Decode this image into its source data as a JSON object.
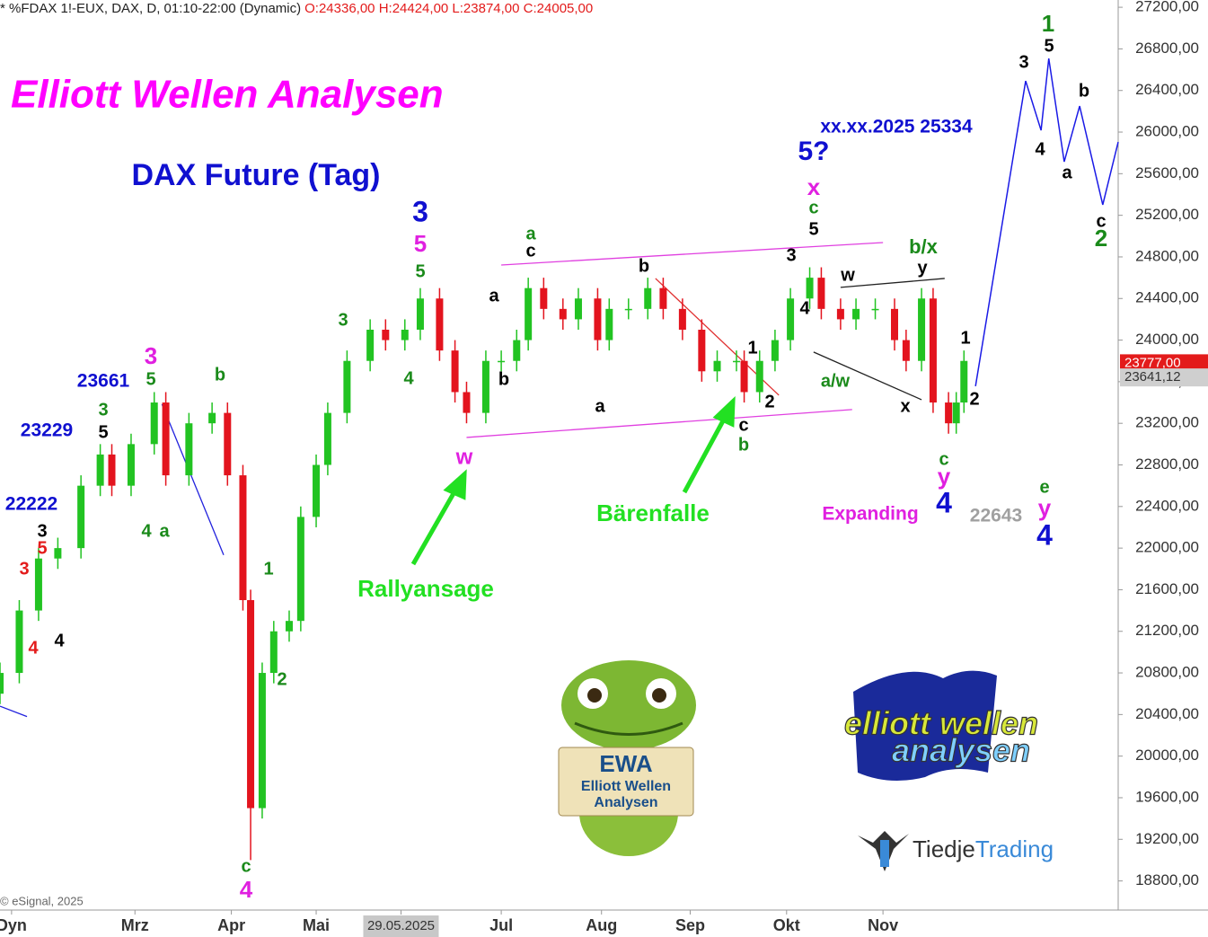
{
  "chart_data": {
    "type": "candlestick",
    "header": {
      "symbol": "* %FDAX 1!-EUX, DAX, D, 01:10-22:00 (Dynamic)",
      "ohlc": "O:24336,00 H:24424,00 L:23874,00 C:24005,00"
    },
    "title": "Elliott Wellen Analysen",
    "subtitle": "DAX Future (Tag)",
    "up_color": "#22c322",
    "down_color": "#e3141e",
    "x": [
      0,
      5,
      10,
      15,
      21,
      26,
      29,
      34,
      40,
      43,
      49,
      55,
      59,
      63,
      65,
      68,
      71,
      75,
      78,
      82,
      85,
      90,
      96,
      100,
      105,
      109,
      114,
      118,
      121,
      126,
      130,
      134,
      137,
      141,
      146,
      150,
      155,
      158,
      163,
      168,
      172,
      177,
      182,
      186,
      191,
      193,
      197,
      201,
      205,
      210,
      213,
      218,
      222,
      227,
      232,
      235,
      239,
      242,
      246,
      248,
      250
    ],
    "open": [
      20600,
      20800,
      21400,
      21900,
      22000,
      22600,
      22900,
      22600,
      23000,
      23400,
      22700,
      23200,
      23300,
      22700,
      21500,
      19500,
      20800,
      21200,
      21300,
      22300,
      22800,
      23300,
      23800,
      24100,
      24000,
      24100,
      24400,
      23900,
      23500,
      23300,
      23800,
      23800,
      24000,
      24500,
      24300,
      24200,
      24400,
      24000,
      24300,
      24300,
      24500,
      24300,
      24100,
      23700,
      23800,
      23800,
      23500,
      23800,
      24000,
      24400,
      24600,
      24300,
      24200,
      24300,
      24300,
      24000,
      23800,
      24400,
      23400,
      23200,
      23400
    ],
    "high": [
      20900,
      21500,
      22000,
      22100,
      22700,
      23000,
      23000,
      23100,
      23500,
      23500,
      23300,
      23400,
      23400,
      22800,
      21600,
      20900,
      21300,
      21400,
      22400,
      22900,
      23400,
      23900,
      24200,
      24200,
      24200,
      24500,
      24500,
      24000,
      23600,
      23900,
      23900,
      24100,
      24600,
      24600,
      24400,
      24500,
      24500,
      24400,
      24400,
      24600,
      24600,
      24400,
      24200,
      23900,
      23900,
      23900,
      23900,
      24100,
      24500,
      24700,
      24700,
      24400,
      24400,
      24400,
      24400,
      24100,
      24500,
      24500,
      23500,
      23500,
      23900
    ],
    "low": [
      20500,
      20700,
      21300,
      21800,
      21900,
      22500,
      22500,
      22500,
      22900,
      22600,
      22600,
      23100,
      22600,
      21400,
      19000,
      19400,
      20700,
      21100,
      21200,
      22200,
      22700,
      23200,
      23700,
      23900,
      23900,
      24000,
      23800,
      23400,
      23200,
      23200,
      23700,
      23700,
      23900,
      24200,
      24100,
      24100,
      23900,
      23900,
      24200,
      24200,
      24200,
      24000,
      23600,
      23600,
      23700,
      23400,
      23400,
      23700,
      23900,
      24300,
      24200,
      24100,
      24100,
      24200,
      23900,
      23700,
      23700,
      23300,
      23100,
      23100,
      23300
    ],
    "close": [
      20800,
      21400,
      21900,
      22000,
      22600,
      22900,
      22600,
      23000,
      23400,
      22700,
      23200,
      23300,
      22700,
      21500,
      19500,
      20800,
      21200,
      21300,
      22300,
      22800,
      23300,
      23800,
      24100,
      24000,
      24100,
      24400,
      23900,
      23500,
      23300,
      23800,
      23800,
      24000,
      24500,
      24300,
      24200,
      24400,
      24000,
      24300,
      24300,
      24500,
      24300,
      24100,
      23700,
      23800,
      23800,
      23500,
      23800,
      24000,
      24400,
      24600,
      24300,
      24200,
      24300,
      24300,
      24000,
      23800,
      24400,
      23400,
      23200,
      23400,
      23800
    ],
    "projection": {
      "color": "#1a1ae6",
      "x": [
        253,
        266,
        270,
        272,
        276,
        280,
        286,
        290
      ],
      "values": [
        23557,
        26492,
        26017,
        26708,
        25715,
        26250,
        25301,
        25905
      ]
    },
    "trendlines": [
      {
        "color": "#e040e0",
        "x": [
          130,
          229
        ],
        "values": [
          24722,
          24938
        ]
      },
      {
        "color": "#e040e0",
        "x": [
          121,
          221
        ],
        "values": [
          23064,
          23332
        ]
      },
      {
        "color": "#222222",
        "x": [
          218,
          245
        ],
        "values": [
          24507,
          24593
        ]
      },
      {
        "color": "#222222",
        "x": [
          211,
          239
        ],
        "values": [
          23885,
          23427
        ]
      },
      {
        "color": "#e03030",
        "x": [
          170,
          202
        ],
        "values": [
          24593,
          23470
        ]
      },
      {
        "color": "#2222dd",
        "x": [
          42,
          58
        ],
        "values": [
          23384,
          21934
        ]
      },
      {
        "color": "#2222dd",
        "x": [
          0,
          7
        ],
        "values": [
          20480,
          20380
        ]
      }
    ],
    "xlim": [
      0,
      290
    ],
    "xticks": [
      {
        "value": 3,
        "label": "Dyn"
      },
      {
        "value": 35,
        "label": "Mrz"
      },
      {
        "value": 60,
        "label": "Apr"
      },
      {
        "value": 82,
        "label": "Mai"
      },
      {
        "value": 104,
        "label": "29.05.2025"
      },
      {
        "value": 130,
        "label": "Jul"
      },
      {
        "value": 156,
        "label": "Aug"
      },
      {
        "value": 179,
        "label": "Sep"
      },
      {
        "value": 204,
        "label": "Okt"
      },
      {
        "value": 229,
        "label": "Nov"
      }
    ],
    "ylim": [
      18520,
      27270
    ],
    "yticks": [
      {
        "value": 27200,
        "label": "27200,00"
      },
      {
        "value": 26800,
        "label": "26800,00"
      },
      {
        "value": 26400,
        "label": "26400,00"
      },
      {
        "value": 26000,
        "label": "26000,00"
      },
      {
        "value": 25600,
        "label": "25600,00"
      },
      {
        "value": 25200,
        "label": "25200,00"
      },
      {
        "value": 24800,
        "label": "24800,00"
      },
      {
        "value": 24400,
        "label": "24400,00"
      },
      {
        "value": 24000,
        "label": "24000,00"
      },
      {
        "value": 23600,
        "label": "23600,00"
      },
      {
        "value": 23200,
        "label": "23200,00"
      },
      {
        "value": 22800,
        "label": "22800,00"
      },
      {
        "value": 22400,
        "label": "22400,00"
      },
      {
        "value": 22000,
        "label": "22000,00"
      },
      {
        "value": 21600,
        "label": "21600,00"
      },
      {
        "value": 21200,
        "label": "21200,00"
      },
      {
        "value": 20800,
        "label": "20800,00"
      },
      {
        "value": 20400,
        "label": "20400,00"
      },
      {
        "value": 20000,
        "label": "20000,00"
      },
      {
        "value": 19600,
        "label": "19600,00"
      },
      {
        "value": 19200,
        "label": "19200,00"
      },
      {
        "value": 18800,
        "label": "18800,00"
      }
    ],
    "price_tags": [
      {
        "value": 23777,
        "label": "23777,00",
        "color": "#e31b1b"
      },
      {
        "value": 23641.12,
        "label": "23641,12",
        "color": "#cfcfcf"
      }
    ],
    "labels": [
      {
        "text": "22222",
        "color": "#1010d0"
      },
      {
        "text": "3",
        "color": "#000"
      },
      {
        "text": "5",
        "color": "#e31b1b"
      },
      {
        "text": "3",
        "color": "#e31b1b"
      },
      {
        "text": "4",
        "color": "#e31b1b"
      },
      {
        "text": "4",
        "color": "#000"
      },
      {
        "text": "23229",
        "color": "#1010d0"
      },
      {
        "text": "3",
        "color": "#1a8a1a"
      },
      {
        "text": "5",
        "color": "#000"
      },
      {
        "text": "23661",
        "color": "#1010d0"
      },
      {
        "text": "3",
        "color": "#e020e0"
      },
      {
        "text": "5",
        "color": "#1a8a1a"
      },
      {
        "text": "b",
        "color": "#1a8a1a"
      },
      {
        "text": "4",
        "color": "#1a8a1a"
      },
      {
        "text": "a",
        "color": "#1a8a1a"
      },
      {
        "text": "1",
        "color": "#1a8a1a"
      },
      {
        "text": "2",
        "color": "#1a8a1a"
      },
      {
        "text": "c",
        "color": "#1a8a1a"
      },
      {
        "text": "4",
        "color": "#e020e0"
      },
      {
        "text": "3",
        "color": "#1010d0"
      },
      {
        "text": "5",
        "color": "#e020e0"
      },
      {
        "text": "5",
        "color": "#1a8a1a"
      },
      {
        "text": "3",
        "color": "#1a8a1a"
      },
      {
        "text": "4",
        "color": "#1a8a1a"
      },
      {
        "text": "w",
        "color": "#e020e0"
      },
      {
        "text": "a",
        "color": "#000"
      },
      {
        "text": "b",
        "color": "#000"
      },
      {
        "text": "a",
        "color": "#1a8a1a"
      },
      {
        "text": "c",
        "color": "#000"
      },
      {
        "text": "a",
        "color": "#000"
      },
      {
        "text": "b",
        "color": "#000"
      },
      {
        "text": "1",
        "color": "#000"
      },
      {
        "text": "2",
        "color": "#000"
      },
      {
        "text": "c",
        "color": "#000"
      },
      {
        "text": "b",
        "color": "#1a8a1a"
      },
      {
        "text": "3",
        "color": "#000"
      },
      {
        "text": "4",
        "color": "#000"
      },
      {
        "text": "5",
        "color": "#000"
      },
      {
        "text": "c",
        "color": "#1a8a1a"
      },
      {
        "text": "x",
        "color": "#e020e0"
      },
      {
        "text": "5?",
        "color": "#1010d0"
      },
      {
        "text": "xx.xx.2025 25334",
        "color": "#1010d0"
      },
      {
        "text": "w",
        "color": "#000"
      },
      {
        "text": "y",
        "color": "#000"
      },
      {
        "text": "b/x",
        "color": "#1a8a1a"
      },
      {
        "text": "a/w",
        "color": "#1a8a1a"
      },
      {
        "text": "x",
        "color": "#000"
      },
      {
        "text": "1",
        "color": "#000"
      },
      {
        "text": "2",
        "color": "#000"
      },
      {
        "text": "c",
        "color": "#1a8a1a"
      },
      {
        "text": "y",
        "color": "#e020e0"
      },
      {
        "text": "4",
        "color": "#1010d0"
      },
      {
        "text": "Expanding",
        "color": "#e020e0"
      },
      {
        "text": "22643",
        "color": "#a0a0a0"
      },
      {
        "text": "e",
        "color": "#1a8a1a"
      },
      {
        "text": "y",
        "color": "#e020e0"
      },
      {
        "text": "4",
        "color": "#1010d0"
      },
      {
        "text": "1",
        "color": "#1a8a1a"
      },
      {
        "text": "5",
        "color": "#000"
      },
      {
        "text": "3",
        "color": "#000"
      },
      {
        "text": "4",
        "color": "#000"
      },
      {
        "text": "a",
        "color": "#000"
      },
      {
        "text": "b",
        "color": "#000"
      },
      {
        "text": "c",
        "color": "#000"
      },
      {
        "text": "2",
        "color": "#1a8a1a"
      },
      {
        "text": "Rallyansage",
        "color": "#22e022"
      },
      {
        "text": "Bärenfalle",
        "color": "#22e022"
      }
    ]
  },
  "branding": {
    "source": "© eSignal, 2025",
    "mascot": [
      "EWA",
      "Elliott Wellen",
      "Analysen"
    ],
    "logo": [
      "elliott wellen",
      "analysen"
    ],
    "partner": [
      "Tiedje",
      "Trading"
    ]
  }
}
